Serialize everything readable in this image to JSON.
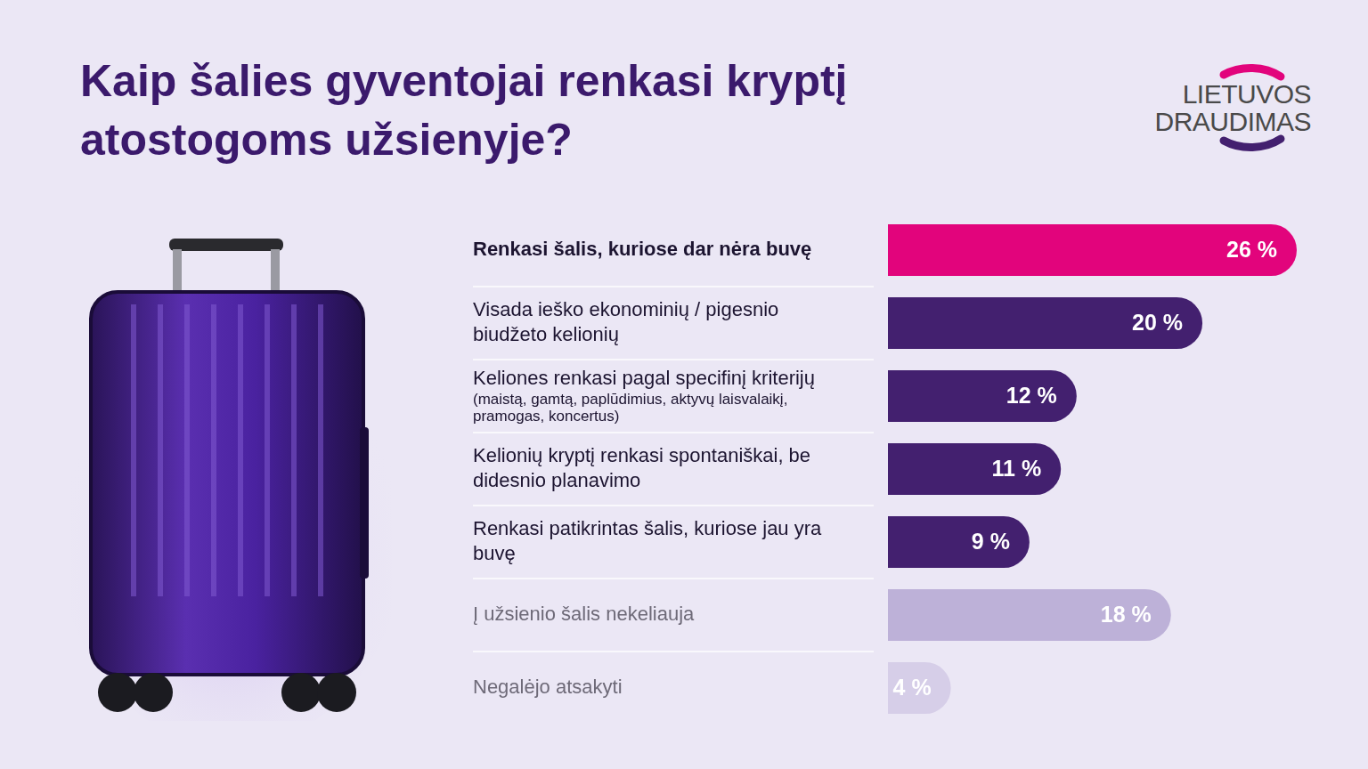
{
  "chart_data": {
    "type": "bar",
    "orientation": "horizontal",
    "title": "Kaip šalies gyventojai renkasi kryptį atostogoms užsienyje?",
    "categories": [
      "Renkasi šalis, kuriose dar nėra buvę",
      "Visada ieško ekonominių / pigesnio biudžeto kelionių",
      "Keliones renkasi pagal specifinį kriterijų (maistą, gamtą, paplūdimius, aktyvų laisvalaikį, pramogas, koncertus)",
      "Kelionių kryptį renkasi spontaniškai, be didesnio planavimo",
      "Renkasi patikrintas šalis, kuriose jau yra buvę",
      "Į užsienio šalis nekeliauja",
      "Negalėjo atsakyti"
    ],
    "values": [
      26,
      20,
      12,
      11,
      9,
      18,
      4
    ],
    "value_labels": [
      "26 %",
      "20 %",
      "12 %",
      "11 %",
      "9 %",
      "18 %",
      "4 %"
    ],
    "colors": [
      "#e2047c",
      "#43206f",
      "#43206f",
      "#43206f",
      "#43206f",
      "#bdb1d8",
      "#d6cee8"
    ],
    "xlim": [
      0,
      26
    ],
    "grid": false,
    "data_labels": true,
    "tick_labels": "y"
  },
  "logo": "LIETUVOS DRAUDIMAS"
}
